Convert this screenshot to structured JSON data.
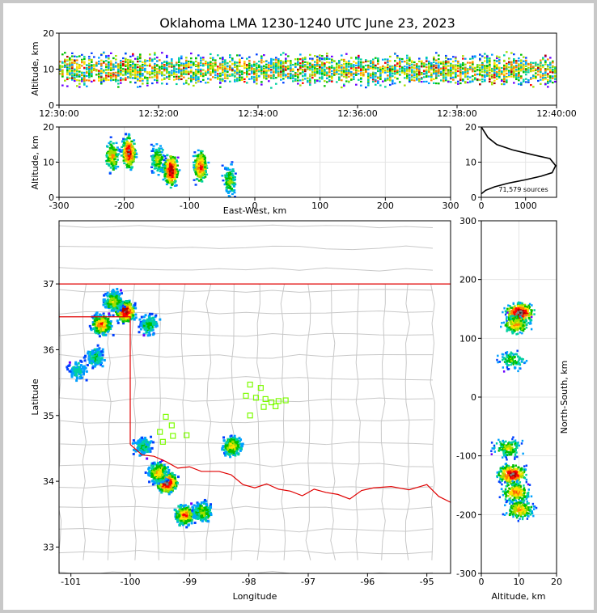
{
  "title": "Oklahoma LMA 1230-1240 UTC June 23, 2023",
  "sources_label": "71,579 sources",
  "colors": {
    "scale": [
      "#6a00ff",
      "#0040ff",
      "#00a0ff",
      "#00d0a0",
      "#00c000",
      "#a0e000",
      "#ffe000",
      "#ff8000",
      "#ff0000",
      "#b00000",
      "#808080",
      "#000000"
    ],
    "state_border": "#e00000",
    "county_lines": "#c8c8c8",
    "station_marker": "#7cfc00"
  },
  "chart_data": [
    {
      "id": "altitude-time",
      "type": "heatmap",
      "xlabel": "",
      "ylabel": "Altitude, km",
      "xlim": [
        "12:30:00",
        "12:40:00"
      ],
      "ylim": [
        0,
        20
      ],
      "x_ticks": [
        "12:30:00",
        "12:32:00",
        "12:34:00",
        "12:36:00",
        "12:38:00",
        "12:40:00"
      ],
      "y_ticks": [
        0,
        10,
        20
      ],
      "typical_altitude_range_km": [
        3,
        16
      ],
      "peak_altitude_km": 10
    },
    {
      "id": "altitude-eastwest",
      "type": "heatmap",
      "xlabel": "East-West, km",
      "ylabel": "Altitude, km",
      "xlim": [
        -300,
        300
      ],
      "ylim": [
        0,
        20
      ],
      "x_ticks": [
        -300,
        -200,
        -100,
        0,
        100,
        200,
        300
      ],
      "y_ticks": [
        0,
        10,
        20
      ],
      "grid": true,
      "clusters": [
        {
          "x": -220,
          "z": 12,
          "density": 0.6
        },
        {
          "x": -195,
          "z": 13,
          "density": 0.95
        },
        {
          "x": -150,
          "z": 11,
          "density": 0.5
        },
        {
          "x": -130,
          "z": 8,
          "density": 1.0
        },
        {
          "x": -85,
          "z": 9,
          "density": 0.8
        },
        {
          "x": -40,
          "z": 5,
          "density": 0.45
        }
      ]
    },
    {
      "id": "altitude-histogram",
      "type": "line",
      "xlabel": "",
      "ylabel": "",
      "xlim": [
        0,
        1700
      ],
      "ylim": [
        0,
        20
      ],
      "x_ticks": [
        0,
        1000
      ],
      "y_ticks": [
        0,
        10,
        20
      ],
      "x": [
        0,
        100,
        300,
        600,
        1000,
        1350,
        1600,
        1680,
        1550,
        1200,
        700,
        350,
        150,
        50,
        0
      ],
      "y": [
        1,
        2,
        3,
        4,
        5,
        6,
        7,
        9,
        11,
        12,
        13.5,
        15,
        17,
        19,
        20
      ]
    },
    {
      "id": "plan-view",
      "type": "heatmap",
      "xlabel": "Longitude",
      "ylabel": "Latitude",
      "xlim": [
        -101.2,
        -94.6
      ],
      "ylim": [
        32.6,
        37.96
      ],
      "x_ticks": [
        -101,
        -100,
        -99,
        -98,
        -97,
        -96,
        -95
      ],
      "y_ticks": [
        33,
        34,
        35,
        36,
        37
      ],
      "clusters": [
        {
          "lon": -100.1,
          "lat": 36.6,
          "density": 0.95
        },
        {
          "lon": -100.5,
          "lat": 36.4,
          "density": 0.7
        },
        {
          "lon": -100.3,
          "lat": 36.75,
          "density": 0.5
        },
        {
          "lon": -99.7,
          "lat": 36.4,
          "density": 0.35
        },
        {
          "lon": -100.6,
          "lat": 35.9,
          "density": 0.3
        },
        {
          "lon": -100.9,
          "lat": 35.7,
          "density": 0.25
        },
        {
          "lon": -99.8,
          "lat": 34.55,
          "density": 0.3
        },
        {
          "lon": -98.3,
          "lat": 34.55,
          "density": 0.55
        },
        {
          "lon": -99.4,
          "lat": 34.0,
          "density": 1.0
        },
        {
          "lon": -99.55,
          "lat": 34.15,
          "density": 0.6
        },
        {
          "lon": -99.1,
          "lat": 33.5,
          "density": 0.7
        },
        {
          "lon": -98.8,
          "lat": 33.55,
          "density": 0.45
        }
      ],
      "stations": [
        [
          -97.98,
          35.47
        ],
        [
          -97.8,
          35.42
        ],
        [
          -98.05,
          35.3
        ],
        [
          -97.88,
          35.27
        ],
        [
          -97.72,
          35.25
        ],
        [
          -97.62,
          35.2
        ],
        [
          -97.5,
          35.22
        ],
        [
          -97.38,
          35.23
        ],
        [
          -97.55,
          35.14
        ],
        [
          -97.75,
          35.13
        ],
        [
          -97.98,
          35.0
        ],
        [
          -99.4,
          34.98
        ],
        [
          -99.3,
          34.85
        ],
        [
          -99.5,
          34.75
        ],
        [
          -99.28,
          34.69
        ],
        [
          -99.05,
          34.7
        ],
        [
          -99.45,
          34.6
        ]
      ]
    },
    {
      "id": "northsouth-altitude",
      "type": "heatmap",
      "xlabel": "Altitude, km",
      "ylabel": "North-South, km",
      "xlim": [
        0,
        20
      ],
      "ylim": [
        -300,
        300
      ],
      "x_ticks": [
        0,
        10,
        20
      ],
      "y_ticks": [
        -300,
        -200,
        -100,
        0,
        100,
        200,
        300
      ],
      "grid": true,
      "clusters": [
        {
          "z": 10,
          "y": 145,
          "density": 1.0
        },
        {
          "z": 9,
          "y": 125,
          "density": 0.6
        },
        {
          "z": 8,
          "y": 65,
          "density": 0.35
        },
        {
          "z": 7,
          "y": -85,
          "density": 0.45
        },
        {
          "z": 8,
          "y": -130,
          "density": 0.9
        },
        {
          "z": 9,
          "y": -160,
          "density": 0.7
        },
        {
          "z": 10,
          "y": -190,
          "density": 0.6
        }
      ]
    }
  ]
}
